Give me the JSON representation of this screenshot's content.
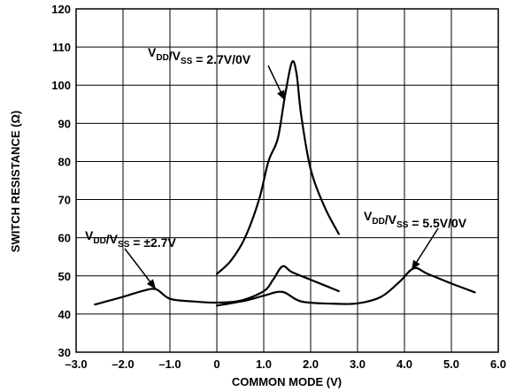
{
  "chart_data": {
    "type": "line",
    "xlabel": "COMMON MODE (V)",
    "ylabel": "SWITCH RESISTANCE (Ω)",
    "xlim": [
      -3.0,
      6.0
    ],
    "ylim": [
      30,
      120
    ],
    "x_ticks": [
      -3.0,
      -2.0,
      -1.0,
      0,
      1.0,
      2.0,
      3.0,
      4.0,
      5.0,
      6.0
    ],
    "x_tick_labels": [
      "–3.0",
      "–2.0",
      "–1.0",
      "0",
      "1.0",
      "2.0",
      "3.0",
      "4.0",
      "5.0",
      "6.0"
    ],
    "y_ticks": [
      30,
      40,
      50,
      60,
      70,
      80,
      90,
      100,
      110,
      120
    ],
    "y_tick_labels": [
      "30",
      "40",
      "50",
      "60",
      "70",
      "80",
      "90",
      "100",
      "110",
      "120"
    ],
    "grid": true,
    "series": [
      {
        "label": "2.7V/0V",
        "x": [
          0,
          0.3,
          0.6,
          0.9,
          1.1,
          1.3,
          1.45,
          1.6,
          1.7,
          1.8,
          2.0,
          2.3,
          2.6
        ],
        "y": [
          50.5,
          54,
          60,
          70,
          80,
          86,
          97,
          106,
          103,
          92,
          78,
          68,
          61
        ]
      },
      {
        "label": "±2.7V",
        "x": [
          -2.6,
          -2.0,
          -1.6,
          -1.3,
          -1.0,
          -0.5,
          0,
          0.5,
          1.0,
          1.2,
          1.4,
          1.6,
          2.0,
          2.6
        ],
        "y": [
          42.5,
          44.5,
          46,
          46.5,
          44,
          43.3,
          43,
          43.5,
          46,
          49,
          52.5,
          51,
          49,
          46
        ]
      },
      {
        "label": "5.5V/0V",
        "x": [
          0,
          0.6,
          1.0,
          1.4,
          1.8,
          2.5,
          3.0,
          3.5,
          3.9,
          4.2,
          4.5,
          5.0,
          5.5
        ],
        "y": [
          42.2,
          43.5,
          44.8,
          45.8,
          43.3,
          42.7,
          42.8,
          44.5,
          48.5,
          52,
          50.5,
          48,
          45.7
        ]
      }
    ],
    "annotations": [
      {
        "main": "V",
        "sub1": "DD",
        "sep": "/V",
        "sub2": "SS",
        "value": " = 2.7V/0V",
        "target_x": 1.45,
        "target_y": 96
      },
      {
        "main": "V",
        "sub1": "DD",
        "sep": "/V",
        "sub2": "SS",
        "value": " = ±2.7V",
        "target_x": -1.3,
        "target_y": 46.5
      },
      {
        "main": "V",
        "sub1": "DD",
        "sep": "/V",
        "sub2": "SS",
        "value": " = 5.5V/0V",
        "target_x": 4.15,
        "target_y": 51.5
      }
    ]
  }
}
